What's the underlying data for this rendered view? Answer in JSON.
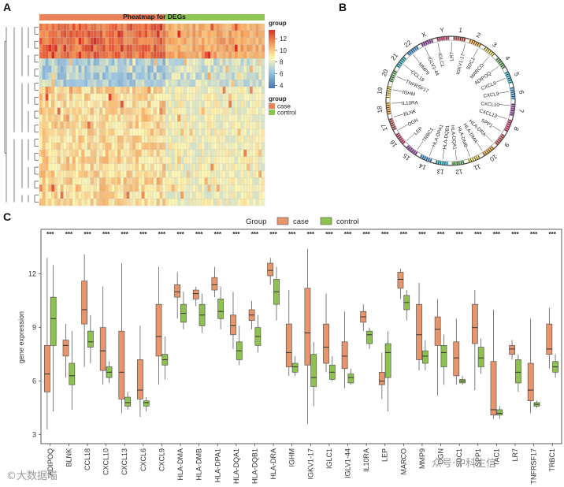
{
  "panels": {
    "a": {
      "letter": "A"
    },
    "b": {
      "letter": "B"
    },
    "c": {
      "letter": "C"
    }
  },
  "heatmap": {
    "title": "Pheatmap for DEGs",
    "group_label": "group",
    "legend_title": "group",
    "legend_items": [
      {
        "label": "case",
        "color": "#e8825a"
      },
      {
        "label": "control",
        "color": "#8dc453"
      }
    ],
    "scale_ticks": [
      12,
      10,
      8,
      6,
      4
    ],
    "scale_range": [
      3.5,
      13.5
    ],
    "colors": {
      "high": "#d73027",
      "mid": "#fdf6b5",
      "low": "#4575b4"
    },
    "n_case_cols": 42,
    "n_control_cols": 33,
    "n_rows": 26
  },
  "circos": {
    "chromosomes": [
      "1",
      "2",
      "3",
      "4",
      "5",
      "6",
      "7",
      "8",
      "9",
      "10",
      "11",
      "12",
      "13",
      "14",
      "15",
      "16",
      "17",
      "18",
      "19",
      "20",
      "21",
      "22",
      "X",
      "Y"
    ],
    "genes": [
      "IGKV1-17",
      "SDC1",
      "MARCO",
      "ADIPOQ",
      "CXCL6",
      "CXCL9",
      "CXCL10",
      "CXCL13",
      "SPP1",
      "HLA-DRA",
      "HLA-DMA",
      "HLA-DMB",
      "HLA-DQA1",
      "HLA-DQB1",
      "HLA-DPA1",
      "TRBC1",
      "LEP",
      "OGN",
      "BLNK",
      "IL10RA",
      "IGHM",
      "TNFRSF17",
      "CCL18",
      "MMP9",
      "IGLV1-44",
      "IGLC1",
      "LR7"
    ]
  },
  "chart_data": {
    "type": "box",
    "title": "",
    "legend_title": "Group",
    "xlabel": "",
    "ylabel": "gene expression",
    "ylim": [
      2.5,
      14.5
    ],
    "yticks": [
      3,
      6,
      9,
      12
    ],
    "significance": "***",
    "series_colors": {
      "case": "#e8956b",
      "control": "#8cc24d"
    },
    "legend": [
      {
        "name": "case"
      },
      {
        "name": "control"
      }
    ],
    "categories": [
      "ADIPOQ",
      "BLNK",
      "CCL18",
      "CXCL10",
      "CXCL13",
      "CXCL6",
      "CXCL9",
      "HLA-DMA",
      "HLA-DMB",
      "HLA-DPA1",
      "HLA-DQA1",
      "HLA-DQB1",
      "HLA-DRA",
      "IGHM",
      "IGKV1-17",
      "IGLC1",
      "IGLV1-44",
      "IL10RA",
      "LEP",
      "MARCO",
      "MMP9",
      "OGN",
      "SDC1",
      "SPP1",
      "TAC1",
      "LR7",
      "TNFRSF17",
      "TRBC1"
    ],
    "series": [
      {
        "name": "case",
        "boxes": [
          [
            3.3,
            5.4,
            6.4,
            8.0,
            12.9
          ],
          [
            6.2,
            7.4,
            8.0,
            8.3,
            9.2
          ],
          [
            6.8,
            9.2,
            10.0,
            11.6,
            13.1
          ],
          [
            5.8,
            6.6,
            7.7,
            9.0,
            11.3
          ],
          [
            4.2,
            5.0,
            6.5,
            8.8,
            12.6
          ],
          [
            4.0,
            5.0,
            5.5,
            7.2,
            9.1
          ],
          [
            5.8,
            7.4,
            8.5,
            10.3,
            12.4
          ],
          [
            9.5,
            10.7,
            11.0,
            11.4,
            12.1
          ],
          [
            10.2,
            10.6,
            10.9,
            11.1,
            11.3
          ],
          [
            10.7,
            11.1,
            11.4,
            11.8,
            12.4
          ],
          [
            7.8,
            8.6,
            9.1,
            9.7,
            11.0
          ],
          [
            8.9,
            9.4,
            9.7,
            10.0,
            10.5
          ],
          [
            11.4,
            11.9,
            12.2,
            12.6,
            12.9
          ],
          [
            6.3,
            6.8,
            7.6,
            9.2,
            11.1
          ],
          [
            3.6,
            6.9,
            8.7,
            11.2,
            13.4
          ],
          [
            6.5,
            7.0,
            7.9,
            9.2,
            10.9
          ],
          [
            5.6,
            6.7,
            7.4,
            8.2,
            9.9
          ],
          [
            8.8,
            9.3,
            9.6,
            9.9,
            10.3
          ],
          [
            5.0,
            5.8,
            6.0,
            6.5,
            7.6
          ],
          [
            10.6,
            11.2,
            11.7,
            12.1,
            12.3
          ],
          [
            6.6,
            7.2,
            8.6,
            10.3,
            11.5
          ],
          [
            5.2,
            8.0,
            8.9,
            9.6,
            10.6
          ],
          [
            5.8,
            6.3,
            7.3,
            8.2,
            9.5
          ],
          [
            5.5,
            8.1,
            9.0,
            10.3,
            11.1
          ],
          [
            3.9,
            4.1,
            4.4,
            7.1,
            10.0
          ],
          [
            7.2,
            7.5,
            7.8,
            8.0,
            8.3
          ],
          [
            4.2,
            4.9,
            5.5,
            7.0,
            9.5
          ],
          [
            6.7,
            7.5,
            7.8,
            9.2,
            10.1
          ]
        ]
      },
      {
        "name": "control",
        "boxes": [
          [
            4.3,
            8.0,
            9.5,
            10.7,
            12.5
          ],
          [
            4.4,
            5.8,
            6.3,
            7.0,
            8.8
          ],
          [
            7.0,
            7.9,
            8.2,
            8.8,
            9.7
          ],
          [
            5.9,
            6.2,
            6.5,
            6.8,
            7.1
          ],
          [
            4.4,
            4.6,
            4.8,
            5.1,
            5.4
          ],
          [
            4.3,
            4.6,
            4.8,
            4.9,
            5.1
          ],
          [
            6.1,
            6.9,
            7.2,
            7.5,
            8.5
          ],
          [
            8.9,
            9.3,
            9.8,
            10.3,
            11.0
          ],
          [
            8.7,
            9.1,
            9.7,
            10.3,
            10.9
          ],
          [
            8.9,
            9.5,
            9.9,
            10.6,
            11.3
          ],
          [
            6.9,
            7.2,
            7.7,
            8.2,
            9.1
          ],
          [
            7.6,
            8.0,
            8.5,
            9.0,
            9.7
          ],
          [
            9.4,
            10.3,
            11.0,
            11.7,
            12.4
          ],
          [
            6.3,
            6.5,
            6.8,
            7.0,
            7.4
          ],
          [
            4.6,
            5.7,
            6.2,
            7.5,
            8.2
          ],
          [
            6.0,
            6.1,
            6.5,
            6.9,
            7.4
          ],
          [
            5.8,
            5.9,
            6.2,
            6.4,
            6.7
          ],
          [
            7.8,
            8.1,
            8.6,
            8.8,
            9.0
          ],
          [
            4.3,
            6.2,
            7.6,
            8.1,
            8.8
          ],
          [
            9.4,
            10.0,
            10.4,
            10.8,
            11.1
          ],
          [
            6.6,
            7.0,
            7.4,
            7.7,
            8.3
          ],
          [
            5.8,
            6.8,
            7.6,
            8.0,
            8.6
          ],
          [
            5.8,
            5.9,
            6.0,
            6.1,
            6.3
          ],
          [
            6.4,
            6.8,
            7.3,
            7.9,
            8.4
          ],
          [
            3.9,
            4.1,
            4.2,
            4.4,
            4.6
          ],
          [
            5.4,
            5.9,
            6.5,
            7.2,
            7.5
          ],
          [
            4.5,
            4.6,
            4.7,
            4.8,
            4.9
          ],
          [
            6.2,
            6.5,
            6.8,
            7.1,
            7.5
          ]
        ]
      }
    ]
  },
  "watermarks": {
    "left": "©大数据喵",
    "right": "众号·中科生信"
  }
}
